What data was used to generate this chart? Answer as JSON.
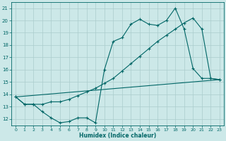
{
  "xlabel": "Humidex (Indice chaleur)",
  "xlim": [
    -0.5,
    23.5
  ],
  "ylim": [
    11.5,
    21.5
  ],
  "yticks": [
    12,
    13,
    14,
    15,
    16,
    17,
    18,
    19,
    20,
    21
  ],
  "xticks": [
    0,
    1,
    2,
    3,
    4,
    5,
    6,
    7,
    8,
    9,
    10,
    11,
    12,
    13,
    14,
    15,
    16,
    17,
    18,
    19,
    20,
    21,
    22,
    23
  ],
  "background_color": "#cce8e8",
  "line_color": "#006666",
  "grid_color": "#aacccc",
  "line1_x": [
    0,
    1,
    2,
    3,
    4,
    5,
    6,
    7,
    8,
    9,
    10,
    11,
    12,
    13,
    14,
    15,
    16,
    17,
    18,
    19,
    20,
    21,
    22,
    23
  ],
  "line1_y": [
    13.8,
    13.2,
    13.2,
    13.2,
    13.4,
    13.4,
    13.6,
    13.9,
    14.2,
    14.5,
    14.9,
    15.3,
    15.9,
    16.5,
    17.1,
    17.7,
    18.3,
    18.8,
    19.3,
    19.8,
    20.2,
    19.3,
    15.3,
    15.2
  ],
  "line2_x": [
    0,
    1,
    2,
    3,
    4,
    5,
    6,
    7,
    8,
    9,
    10,
    11,
    12,
    13,
    14,
    15,
    16,
    17,
    18,
    19,
    20,
    21,
    22,
    23
  ],
  "line2_y": [
    13.8,
    13.2,
    13.2,
    12.6,
    12.1,
    11.7,
    11.8,
    12.1,
    12.1,
    11.7,
    16.0,
    18.3,
    18.6,
    19.7,
    20.1,
    19.7,
    19.6,
    20.0,
    21.0,
    19.3,
    16.1,
    15.3,
    15.3,
    15.2
  ],
  "line3_x": [
    0,
    23
  ],
  "line3_y": [
    13.8,
    15.2
  ]
}
